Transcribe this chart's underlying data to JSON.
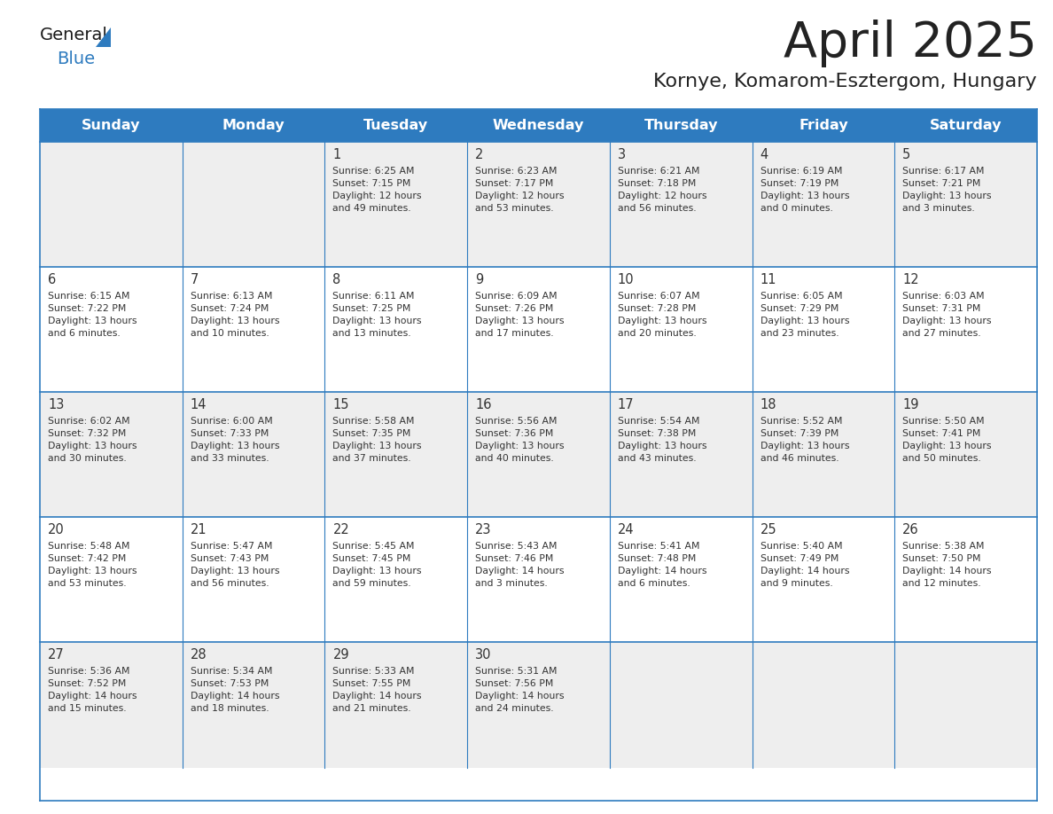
{
  "title": "April 2025",
  "subtitle": "Kornye, Komarom-Esztergom, Hungary",
  "header_bg_color": "#2E7BBF",
  "header_text_color": "#FFFFFF",
  "day_names": [
    "Sunday",
    "Monday",
    "Tuesday",
    "Wednesday",
    "Thursday",
    "Friday",
    "Saturday"
  ],
  "row_bg_odd": "#EEEEEE",
  "row_bg_even": "#FFFFFF",
  "cell_border_color": "#2E7BBF",
  "day_num_color": "#333333",
  "text_color": "#333333",
  "title_color": "#222222",
  "subtitle_color": "#222222",
  "calendar": [
    [
      {
        "day": "",
        "info": ""
      },
      {
        "day": "",
        "info": ""
      },
      {
        "day": "1",
        "info": "Sunrise: 6:25 AM\nSunset: 7:15 PM\nDaylight: 12 hours\nand 49 minutes."
      },
      {
        "day": "2",
        "info": "Sunrise: 6:23 AM\nSunset: 7:17 PM\nDaylight: 12 hours\nand 53 minutes."
      },
      {
        "day": "3",
        "info": "Sunrise: 6:21 AM\nSunset: 7:18 PM\nDaylight: 12 hours\nand 56 minutes."
      },
      {
        "day": "4",
        "info": "Sunrise: 6:19 AM\nSunset: 7:19 PM\nDaylight: 13 hours\nand 0 minutes."
      },
      {
        "day": "5",
        "info": "Sunrise: 6:17 AM\nSunset: 7:21 PM\nDaylight: 13 hours\nand 3 minutes."
      }
    ],
    [
      {
        "day": "6",
        "info": "Sunrise: 6:15 AM\nSunset: 7:22 PM\nDaylight: 13 hours\nand 6 minutes."
      },
      {
        "day": "7",
        "info": "Sunrise: 6:13 AM\nSunset: 7:24 PM\nDaylight: 13 hours\nand 10 minutes."
      },
      {
        "day": "8",
        "info": "Sunrise: 6:11 AM\nSunset: 7:25 PM\nDaylight: 13 hours\nand 13 minutes."
      },
      {
        "day": "9",
        "info": "Sunrise: 6:09 AM\nSunset: 7:26 PM\nDaylight: 13 hours\nand 17 minutes."
      },
      {
        "day": "10",
        "info": "Sunrise: 6:07 AM\nSunset: 7:28 PM\nDaylight: 13 hours\nand 20 minutes."
      },
      {
        "day": "11",
        "info": "Sunrise: 6:05 AM\nSunset: 7:29 PM\nDaylight: 13 hours\nand 23 minutes."
      },
      {
        "day": "12",
        "info": "Sunrise: 6:03 AM\nSunset: 7:31 PM\nDaylight: 13 hours\nand 27 minutes."
      }
    ],
    [
      {
        "day": "13",
        "info": "Sunrise: 6:02 AM\nSunset: 7:32 PM\nDaylight: 13 hours\nand 30 minutes."
      },
      {
        "day": "14",
        "info": "Sunrise: 6:00 AM\nSunset: 7:33 PM\nDaylight: 13 hours\nand 33 minutes."
      },
      {
        "day": "15",
        "info": "Sunrise: 5:58 AM\nSunset: 7:35 PM\nDaylight: 13 hours\nand 37 minutes."
      },
      {
        "day": "16",
        "info": "Sunrise: 5:56 AM\nSunset: 7:36 PM\nDaylight: 13 hours\nand 40 minutes."
      },
      {
        "day": "17",
        "info": "Sunrise: 5:54 AM\nSunset: 7:38 PM\nDaylight: 13 hours\nand 43 minutes."
      },
      {
        "day": "18",
        "info": "Sunrise: 5:52 AM\nSunset: 7:39 PM\nDaylight: 13 hours\nand 46 minutes."
      },
      {
        "day": "19",
        "info": "Sunrise: 5:50 AM\nSunset: 7:41 PM\nDaylight: 13 hours\nand 50 minutes."
      }
    ],
    [
      {
        "day": "20",
        "info": "Sunrise: 5:48 AM\nSunset: 7:42 PM\nDaylight: 13 hours\nand 53 minutes."
      },
      {
        "day": "21",
        "info": "Sunrise: 5:47 AM\nSunset: 7:43 PM\nDaylight: 13 hours\nand 56 minutes."
      },
      {
        "day": "22",
        "info": "Sunrise: 5:45 AM\nSunset: 7:45 PM\nDaylight: 13 hours\nand 59 minutes."
      },
      {
        "day": "23",
        "info": "Sunrise: 5:43 AM\nSunset: 7:46 PM\nDaylight: 14 hours\nand 3 minutes."
      },
      {
        "day": "24",
        "info": "Sunrise: 5:41 AM\nSunset: 7:48 PM\nDaylight: 14 hours\nand 6 minutes."
      },
      {
        "day": "25",
        "info": "Sunrise: 5:40 AM\nSunset: 7:49 PM\nDaylight: 14 hours\nand 9 minutes."
      },
      {
        "day": "26",
        "info": "Sunrise: 5:38 AM\nSunset: 7:50 PM\nDaylight: 14 hours\nand 12 minutes."
      }
    ],
    [
      {
        "day": "27",
        "info": "Sunrise: 5:36 AM\nSunset: 7:52 PM\nDaylight: 14 hours\nand 15 minutes."
      },
      {
        "day": "28",
        "info": "Sunrise: 5:34 AM\nSunset: 7:53 PM\nDaylight: 14 hours\nand 18 minutes."
      },
      {
        "day": "29",
        "info": "Sunrise: 5:33 AM\nSunset: 7:55 PM\nDaylight: 14 hours\nand 21 minutes."
      },
      {
        "day": "30",
        "info": "Sunrise: 5:31 AM\nSunset: 7:56 PM\nDaylight: 14 hours\nand 24 minutes."
      },
      {
        "day": "",
        "info": ""
      },
      {
        "day": "",
        "info": ""
      },
      {
        "day": "",
        "info": ""
      }
    ]
  ],
  "logo_general_color": "#1a1a1a",
  "logo_blue_color": "#2E7BBF",
  "logo_triangle_color": "#2E7BBF",
  "fig_width": 11.88,
  "fig_height": 9.18,
  "dpi": 100
}
